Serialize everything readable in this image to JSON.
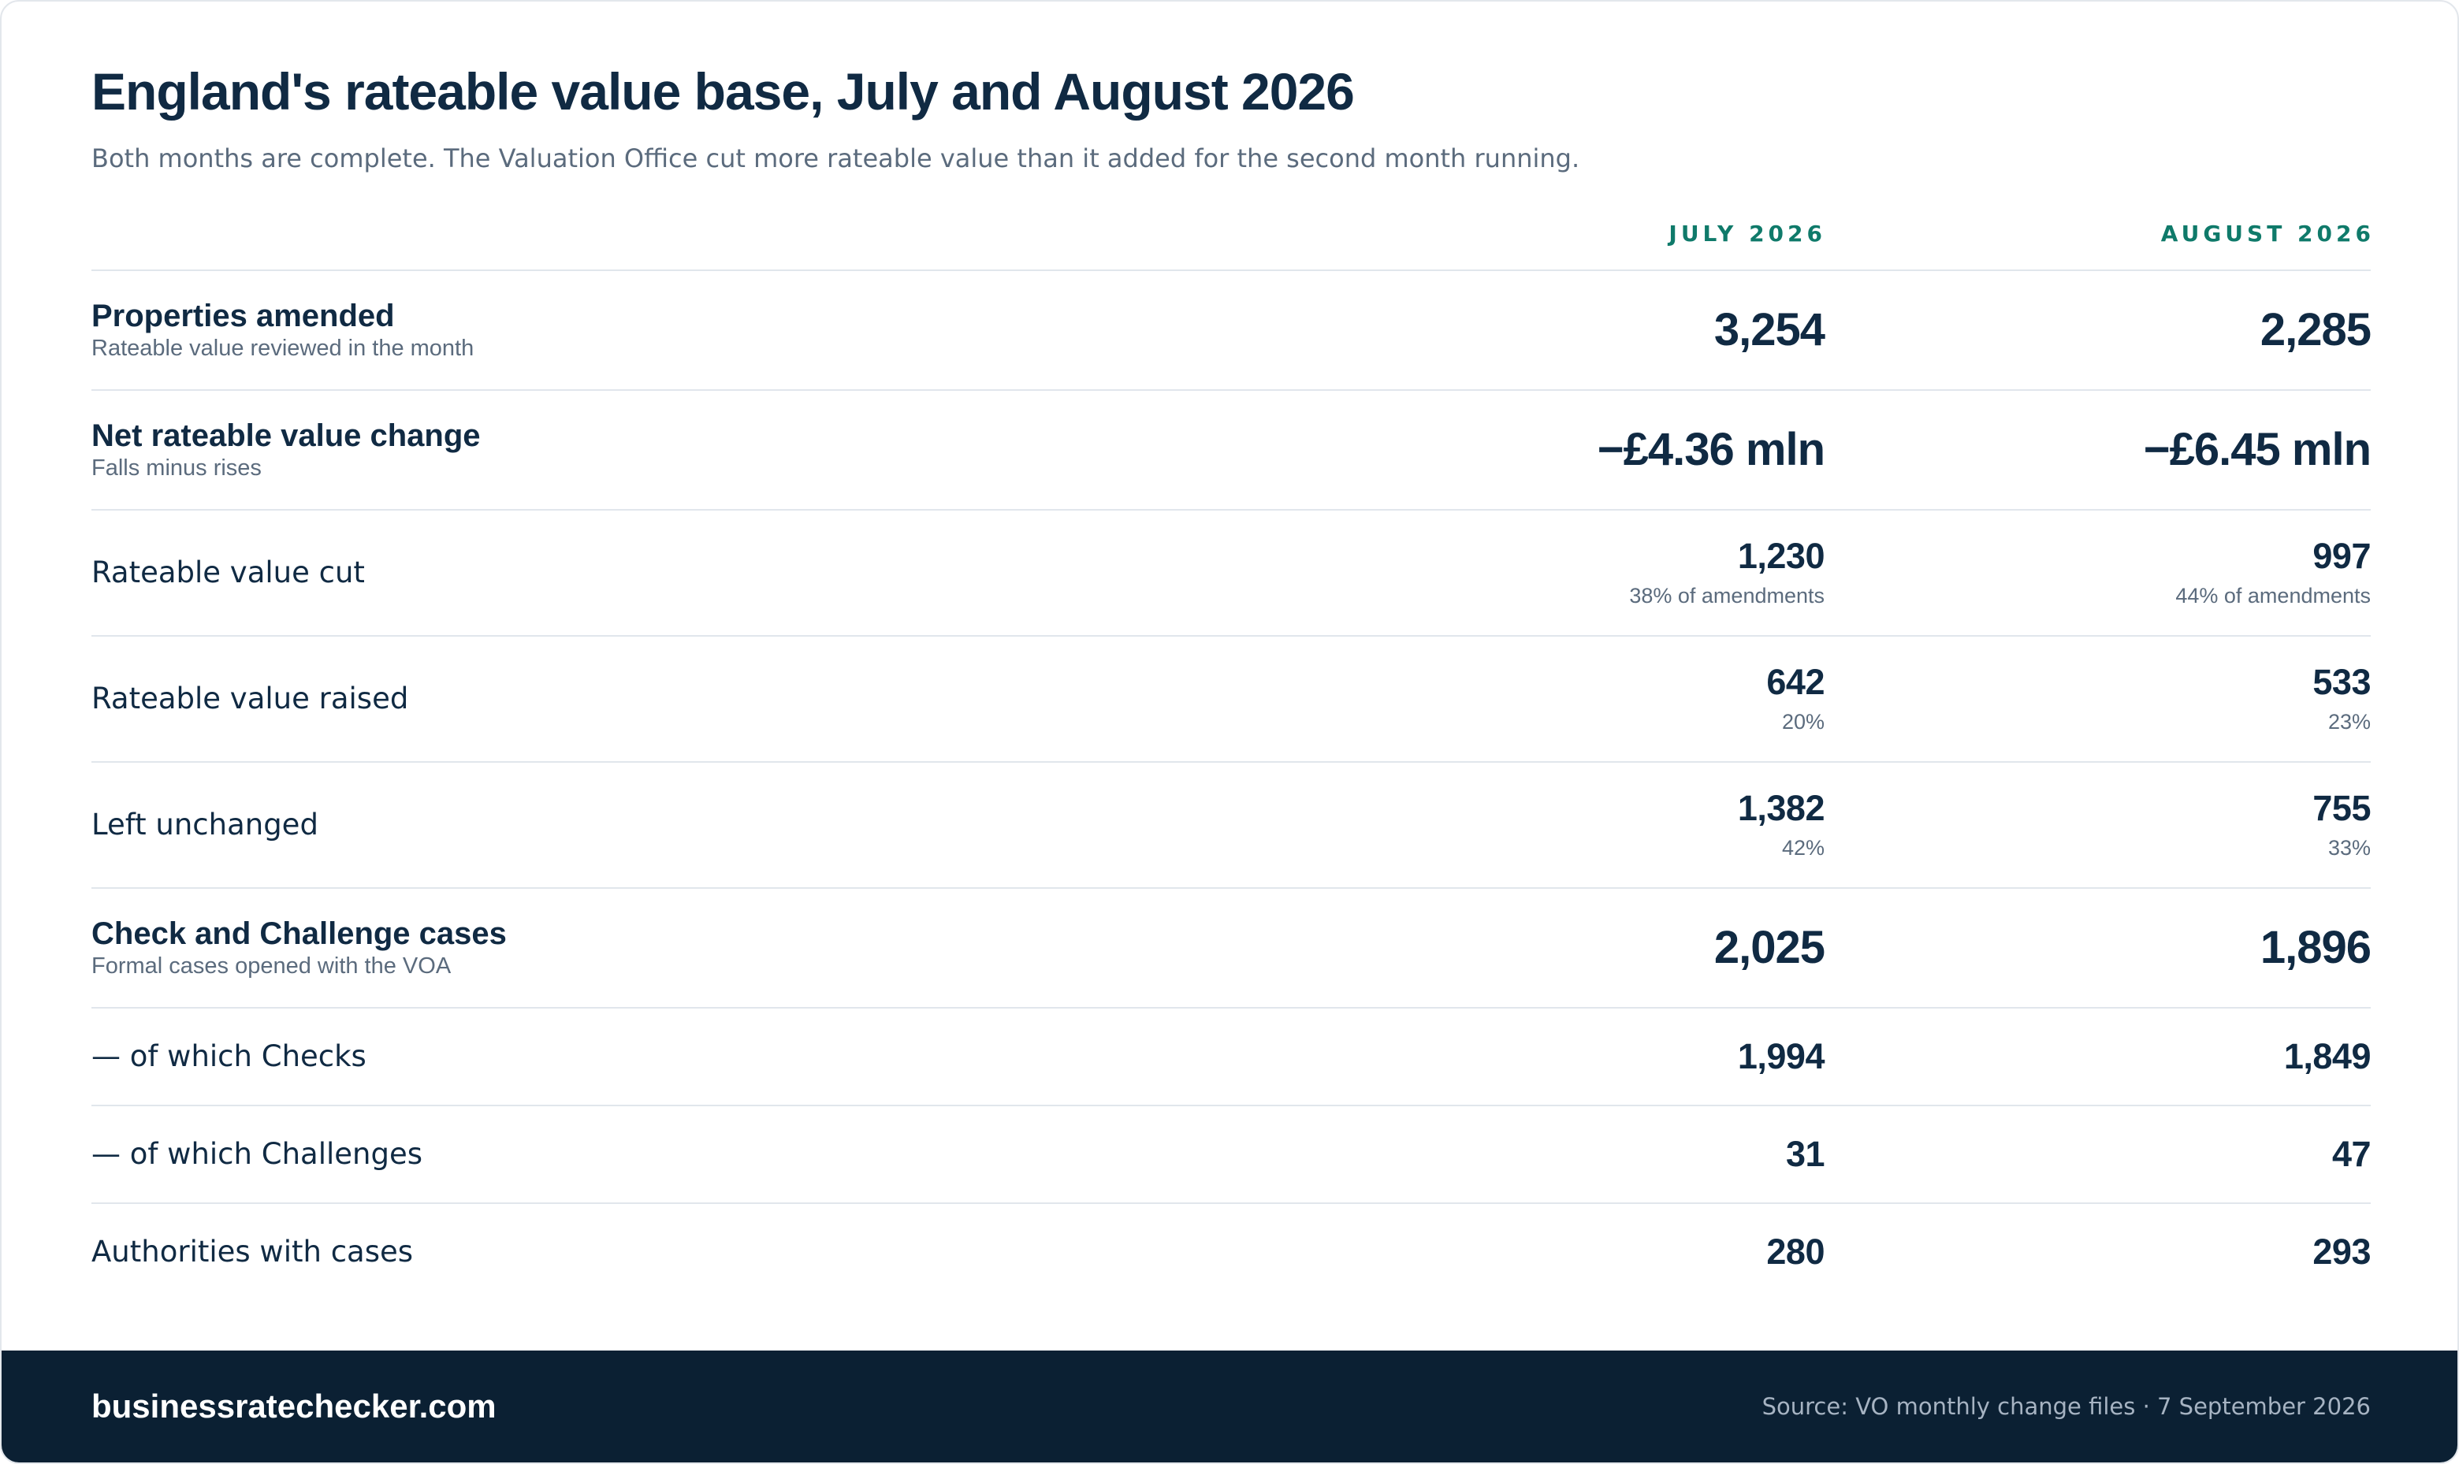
{
  "header": {
    "title": "England's rateable value base, July and August 2026",
    "subtitle": "Both months are complete. The Valuation Office cut more rateable value than it added for the second month running."
  },
  "columns": [
    "JULY 2026",
    "AUGUST 2026"
  ],
  "rows": [
    {
      "label": "Properties amended",
      "sublabel": "Rateable value reviewed in the month",
      "july": "3,254",
      "august": "2,285"
    },
    {
      "label": "Net rateable value change",
      "sublabel": "Falls minus rises",
      "july": "−£4.36 mln",
      "august": "−£6.45 mln"
    },
    {
      "label": "Rateable value cut",
      "july": "1,230",
      "july_note": "38% of amendments",
      "august": "997",
      "august_note": "44% of amendments"
    },
    {
      "label": "Rateable value raised",
      "july": "642",
      "july_note": "20%",
      "august": "533",
      "august_note": "23%"
    },
    {
      "label": "Left unchanged",
      "july": "1,382",
      "july_note": "42%",
      "august": "755",
      "august_note": "33%"
    },
    {
      "label": "Check and Challenge cases",
      "sublabel": "Formal cases opened with the VOA",
      "july": "2,025",
      "august": "1,896"
    },
    {
      "label": "— of which Checks",
      "july": "1,994",
      "august": "1,849"
    },
    {
      "label": "— of which Challenges",
      "july": "31",
      "august": "47"
    },
    {
      "label": "Authorities with cases",
      "july": "280",
      "august": "293"
    }
  ],
  "footer": {
    "brand": "businessratechecker.com",
    "source": "Source: VO monthly change files · 7 September 2026"
  },
  "colors": {
    "navy": "#102a43",
    "accent": "#0f7a6a",
    "muted": "#5b6b7d",
    "footer_bg": "#0b2033"
  }
}
